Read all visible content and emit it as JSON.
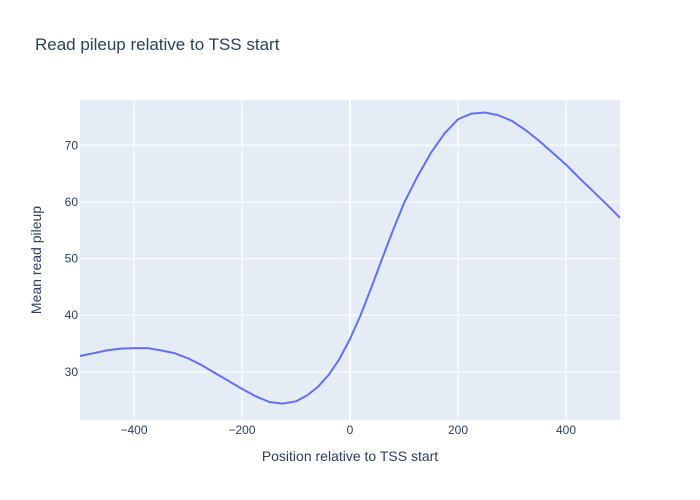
{
  "chart_data": {
    "type": "line",
    "title": "Read pileup relative to TSS start",
    "xlabel": "Position relative to TSS start",
    "ylabel": "Mean read pileup",
    "xlim": [
      -500,
      500
    ],
    "ylim": [
      21.5,
      78
    ],
    "x_ticks": [
      -400,
      -200,
      0,
      200,
      400
    ],
    "x_tick_labels": [
      "−400",
      "−200",
      "0",
      "200",
      "400"
    ],
    "y_ticks": [
      30,
      40,
      50,
      60,
      70
    ],
    "y_tick_labels": [
      "30",
      "40",
      "50",
      "60",
      "70"
    ],
    "grid": true,
    "line_color": "#636efa",
    "plot_bg": "#e5ecf6",
    "series": [
      {
        "x": [
          -500,
          -475,
          -450,
          -425,
          -400,
          -375,
          -350,
          -325,
          -300,
          -275,
          -250,
          -225,
          -200,
          -175,
          -150,
          -125,
          -100,
          -80,
          -60,
          -40,
          -20,
          0,
          20,
          40,
          60,
          80,
          100,
          125,
          150,
          175,
          200,
          225,
          250,
          275,
          300,
          325,
          350,
          375,
          400,
          425,
          450,
          475,
          500
        ],
        "y": [
          32.8,
          33.3,
          33.8,
          34.1,
          34.2,
          34.2,
          33.8,
          33.3,
          32.4,
          31.2,
          29.8,
          28.4,
          27.0,
          25.7,
          24.7,
          24.4,
          24.8,
          25.8,
          27.3,
          29.4,
          32.2,
          35.8,
          40.1,
          45.0,
          50.1,
          55.1,
          59.8,
          64.5,
          68.7,
          72.1,
          74.6,
          75.6,
          75.8,
          75.3,
          74.3,
          72.7,
          70.8,
          68.7,
          66.6,
          64.2,
          61.9,
          59.6,
          57.2
        ]
      }
    ]
  }
}
